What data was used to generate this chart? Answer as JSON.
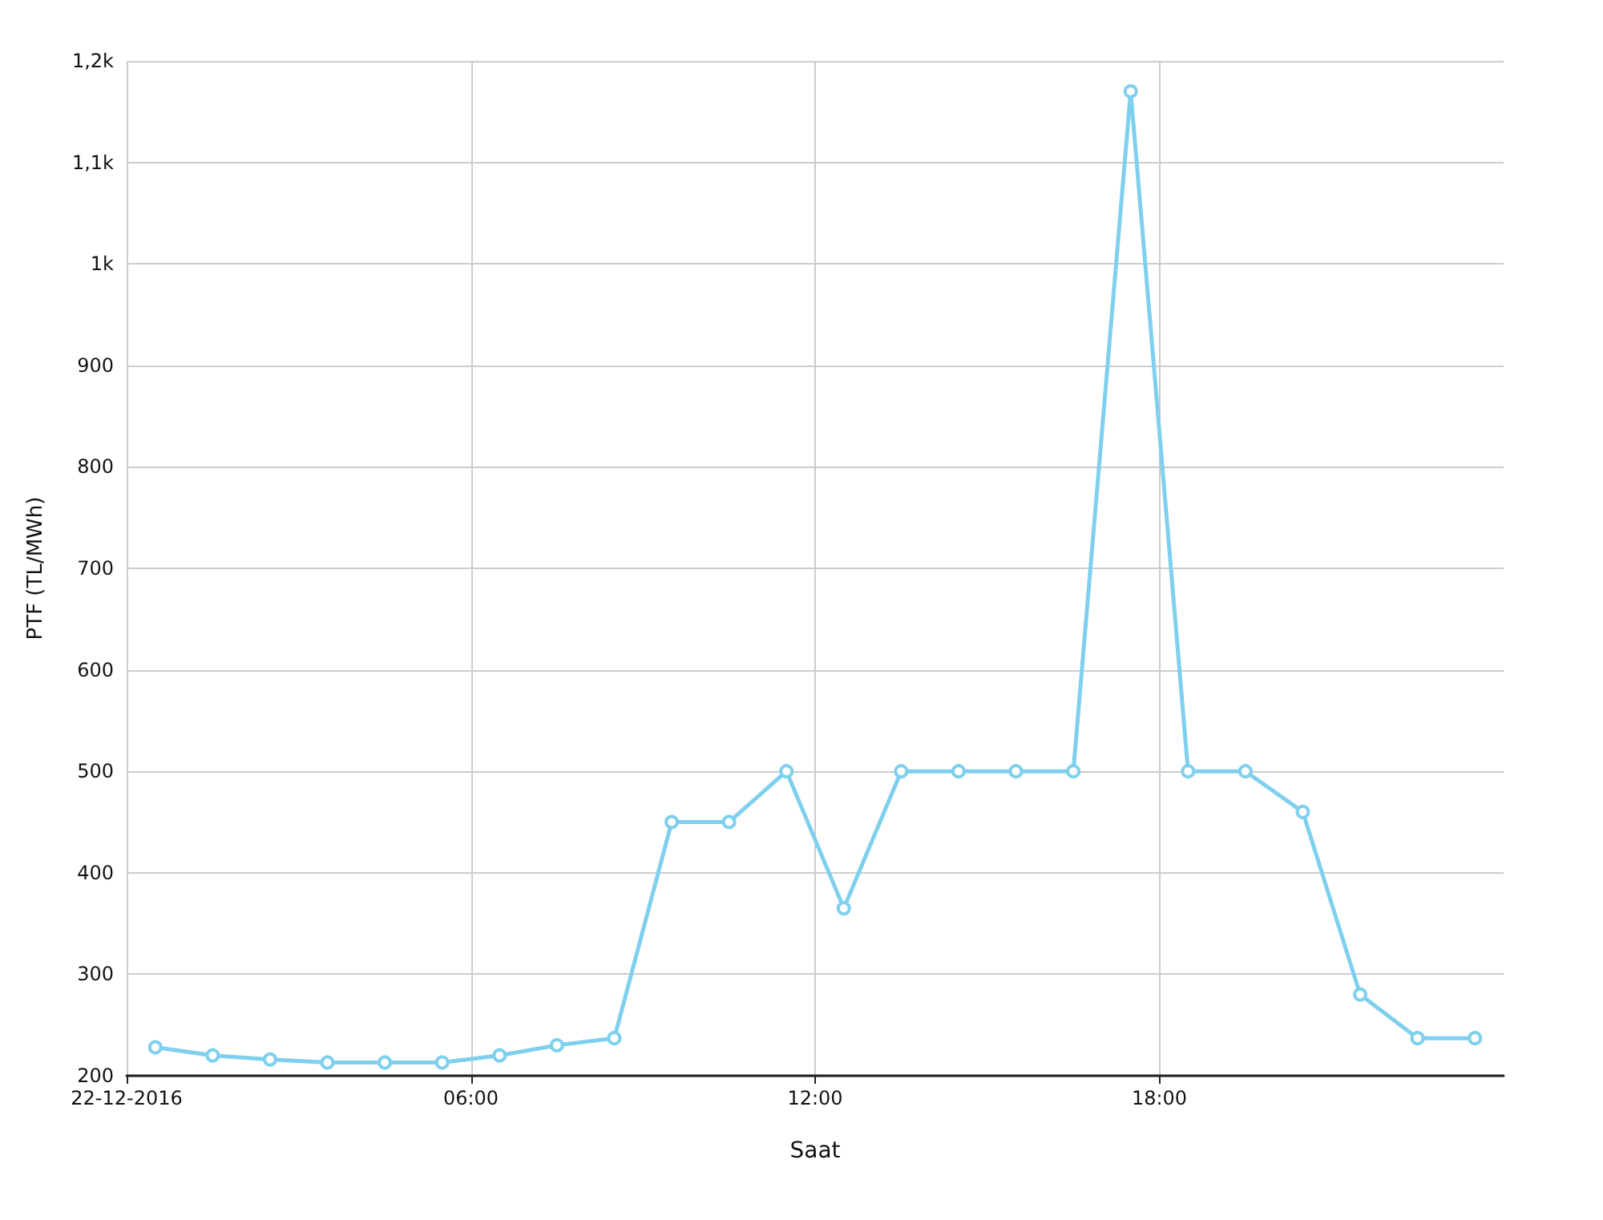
{
  "chart_data": {
    "type": "line",
    "xlabel": "Saat",
    "ylabel": "PTF (TL/MWh)",
    "x": [
      0.5,
      1.5,
      2.5,
      3.5,
      4.5,
      5.5,
      6.5,
      7.5,
      8.5,
      9.5,
      10.5,
      11.5,
      12.5,
      13.5,
      14.5,
      15.5,
      16.5,
      17.5,
      18.5,
      19.5,
      20.5,
      21.5,
      22.5,
      23.5
    ],
    "series": [
      {
        "color": "#7fd0ee",
        "values": [
          228,
          220,
          216,
          213,
          213,
          213,
          220,
          230,
          237,
          450,
          450,
          500,
          365,
          500,
          500,
          500,
          500,
          1170,
          500,
          500,
          460,
          280,
          237,
          237
        ]
      }
    ],
    "xlim": [
      0,
      24
    ],
    "xticks": [
      {
        "value": 0,
        "label": "22-12-2016"
      },
      {
        "value": 6,
        "label": "06:00"
      },
      {
        "value": 12,
        "label": "12:00"
      },
      {
        "value": 18,
        "label": "18:00"
      }
    ],
    "ylim": [
      200,
      1200
    ],
    "yticks": [
      200,
      300,
      400,
      500,
      600,
      700,
      800,
      900,
      {
        "value": 1000,
        "label": "1k"
      },
      {
        "value": 1100,
        "label": "1,1k"
      },
      {
        "value": 1200,
        "label": "1,2k"
      }
    ],
    "grid": true,
    "marker": "circle",
    "line_style": "solid"
  }
}
